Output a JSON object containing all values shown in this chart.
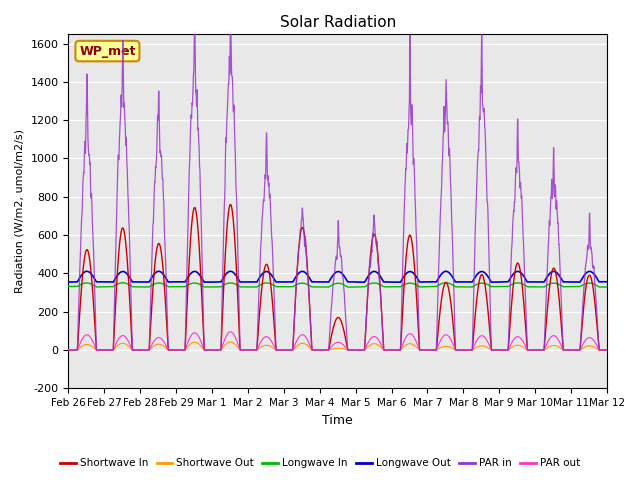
{
  "title": "Solar Radiation",
  "xlabel": "Time",
  "ylabel": "Radiation (W/m2, umol/m2/s)",
  "ylim": [
    -200,
    1650
  ],
  "yticks": [
    -200,
    0,
    200,
    400,
    600,
    800,
    1000,
    1200,
    1400,
    1600
  ],
  "xtick_labels": [
    "Feb 26",
    "Feb 27",
    "Feb 28",
    "Feb 29",
    "Mar 1",
    "Mar 2",
    "Mar 3",
    "Mar 4",
    "Mar 5",
    "Mar 6",
    "Mar 7",
    "Mar 8",
    "Mar 9",
    "Mar 10",
    "Mar 11",
    "Mar 12"
  ],
  "station_label": "WP_met",
  "legend_items": [
    {
      "label": "Shortwave In",
      "color": "#cc0000"
    },
    {
      "label": "Shortwave Out",
      "color": "#ff9900"
    },
    {
      "label": "Longwave In",
      "color": "#00bb00"
    },
    {
      "label": "Longwave Out",
      "color": "#0000cc"
    },
    {
      "label": "PAR in",
      "color": "#9933cc"
    },
    {
      "label": "PAR out",
      "color": "#ff33cc"
    }
  ],
  "n_days": 15,
  "pts_per_day": 288,
  "seed": 42,
  "day_sw_max": [
    520,
    640,
    560,
    730,
    760,
    450,
    640,
    170,
    600,
    590,
    360,
    390,
    450,
    430,
    400
  ],
  "day_par_max": [
    1100,
    1320,
    1100,
    1420,
    1450,
    930,
    640,
    530,
    590,
    1220,
    1200,
    1300,
    940,
    860,
    550
  ],
  "par_out_max": [
    80,
    75,
    65,
    90,
    95,
    70,
    80,
    40,
    70,
    85,
    80,
    75,
    70,
    75,
    65
  ]
}
